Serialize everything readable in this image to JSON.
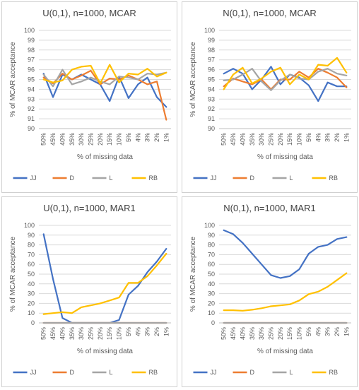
{
  "chart_data": [
    {
      "type": "line",
      "title": "U(0,1), n=1000, MCAR",
      "xlabel": "% of missing data",
      "ylabel": "% of MCAR acceptance",
      "ylim": [
        90,
        100
      ],
      "yticks": [
        90,
        91,
        92,
        93,
        94,
        95,
        96,
        97,
        98,
        99,
        100
      ],
      "grid": true,
      "legend_position": "bottom",
      "categories": [
        "50%",
        "45%",
        "40%",
        "35%",
        "30%",
        "25%",
        "20%",
        "15%",
        "10%",
        "5%",
        "4%",
        "3%",
        "2%",
        "1%"
      ],
      "series": [
        {
          "name": "JJ",
          "color": "#4472C4",
          "values": [
            95.6,
            93.2,
            95.5,
            95.0,
            95.5,
            95.0,
            94.5,
            92.8,
            95.3,
            93.1,
            94.5,
            95.2,
            93.2,
            92.2
          ]
        },
        {
          "name": "D",
          "color": "#ED7D31",
          "values": [
            95.2,
            94.6,
            95.6,
            95.0,
            95.4,
            95.9,
            94.5,
            95.1,
            95.0,
            95.4,
            95.0,
            94.5,
            94.8,
            90.9
          ]
        },
        {
          "name": "L",
          "color": "#A5A5A5",
          "values": [
            95.5,
            94.3,
            96.0,
            94.5,
            94.8,
            95.2,
            94.8,
            94.5,
            95.3,
            95.2,
            95.0,
            95.6,
            95.5,
            95.7
          ]
        },
        {
          "name": "RB",
          "color": "#FFC000",
          "values": [
            95.0,
            94.7,
            94.9,
            96.0,
            96.3,
            96.4,
            94.6,
            96.5,
            94.7,
            95.6,
            95.5,
            96.1,
            95.3,
            95.7
          ]
        }
      ]
    },
    {
      "type": "line",
      "title": "N(0,1), n=1000, MCAR",
      "xlabel": "% of missing data",
      "ylabel": "% of MCAR acceptance",
      "ylim": [
        90,
        100
      ],
      "yticks": [
        90,
        91,
        92,
        93,
        94,
        95,
        96,
        97,
        98,
        99,
        100
      ],
      "grid": true,
      "legend_position": "bottom",
      "categories": [
        "50%",
        "45%",
        "40%",
        "35%",
        "30%",
        "25%",
        "20%",
        "15%",
        "10%",
        "5%",
        "4%",
        "3%",
        "2%",
        "1%"
      ],
      "series": [
        {
          "name": "JJ",
          "color": "#4472C4",
          "values": [
            95.6,
            96.1,
            95.6,
            94.0,
            95.0,
            96.3,
            94.5,
            95.5,
            95.2,
            94.4,
            92.8,
            94.7,
            94.3,
            94.3
          ]
        },
        {
          "name": "D",
          "color": "#ED7D31",
          "values": [
            94.3,
            95.1,
            94.8,
            94.5,
            95.0,
            94.0,
            95.0,
            95.0,
            95.8,
            95.2,
            96.1,
            95.7,
            95.2,
            94.2
          ]
        },
        {
          "name": "L",
          "color": "#A5A5A5",
          "values": [
            94.9,
            95.0,
            95.5,
            96.1,
            94.8,
            93.9,
            94.9,
            95.5,
            95.1,
            95.0,
            95.8,
            96.1,
            95.6,
            95.4
          ]
        },
        {
          "name": "RB",
          "color": "#FFC000",
          "values": [
            94.0,
            95.5,
            96.2,
            94.6,
            95.1,
            95.8,
            96.2,
            94.5,
            95.5,
            95.0,
            96.5,
            96.4,
            97.2,
            95.7
          ]
        }
      ]
    },
    {
      "type": "line",
      "title": "U(0,1), n=1000, MAR1",
      "xlabel": "% of missing data",
      "ylabel": "% of MCAR acceptance",
      "ylim": [
        0,
        100
      ],
      "yticks": [
        0,
        10,
        20,
        30,
        40,
        50,
        60,
        70,
        80,
        90,
        100
      ],
      "grid": true,
      "legend_position": "bottom",
      "categories": [
        "50%",
        "45%",
        "40%",
        "35%",
        "30%",
        "25%",
        "20%",
        "15%",
        "10%",
        "5%",
        "4%",
        "3%",
        "2%",
        "1%"
      ],
      "series": [
        {
          "name": "JJ",
          "color": "#4472C4",
          "values": [
            91,
            45,
            5,
            0,
            0,
            0,
            0,
            0,
            3,
            29,
            38,
            52,
            63,
            76
          ]
        },
        {
          "name": "D",
          "color": "#ED7D31",
          "values": [
            0,
            0,
            0,
            0,
            0,
            0,
            0,
            0,
            0,
            0,
            0,
            0,
            0,
            0
          ]
        },
        {
          "name": "L",
          "color": "#A5A5A5",
          "values": [
            0,
            0,
            0,
            0,
            0,
            0,
            0,
            0,
            0,
            0,
            0,
            0,
            0,
            0
          ]
        },
        {
          "name": "RB",
          "color": "#FFC000",
          "values": [
            9,
            10,
            11,
            10,
            16,
            18,
            20,
            23,
            26,
            41,
            41,
            48,
            59,
            71
          ]
        }
      ]
    },
    {
      "type": "line",
      "title": "N(0,1), n=1000, MAR1",
      "xlabel": "% of missing data",
      "ylabel": "% of MCAR acceptance",
      "ylim": [
        0,
        100
      ],
      "yticks": [
        0,
        10,
        20,
        30,
        40,
        50,
        60,
        70,
        80,
        90,
        100
      ],
      "grid": true,
      "legend_position": "bottom",
      "categories": [
        "50%",
        "45%",
        "40%",
        "35%",
        "30%",
        "25%",
        "20%",
        "15%",
        "10%",
        "5%",
        "4%",
        "3%",
        "2%",
        "1%"
      ],
      "series": [
        {
          "name": "JJ",
          "color": "#4472C4",
          "values": [
            95,
            91,
            82,
            71,
            60,
            49,
            46,
            48,
            55,
            71,
            78,
            80,
            86,
            88
          ]
        },
        {
          "name": "D",
          "color": "#ED7D31",
          "values": [
            0,
            0,
            0,
            0,
            0,
            0,
            0,
            0,
            0,
            0,
            0,
            0,
            0,
            0
          ]
        },
        {
          "name": "L",
          "color": "#A5A5A5",
          "values": [
            0,
            0,
            0,
            0,
            0,
            0,
            0,
            0,
            0,
            0,
            0,
            0,
            0,
            0
          ]
        },
        {
          "name": "RB",
          "color": "#FFC000",
          "values": [
            13,
            13,
            12.5,
            13.5,
            15,
            17,
            18,
            19,
            23,
            29.5,
            32,
            37,
            44,
            51
          ]
        }
      ]
    }
  ]
}
